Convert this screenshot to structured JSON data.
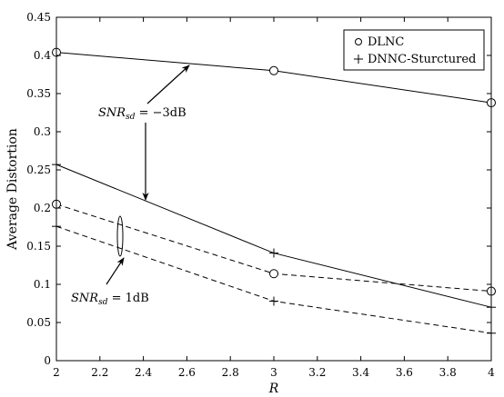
{
  "chart_data": {
    "type": "line",
    "xlabel": "R",
    "ylabel": "Average Distortion",
    "xlim": [
      2,
      4
    ],
    "ylim": [
      0,
      0.45
    ],
    "xticks": [
      "2",
      "2.2",
      "2.4",
      "2.6",
      "2.8",
      "3",
      "3.2",
      "3.4",
      "3.6",
      "3.8",
      "4"
    ],
    "yticks": [
      "0",
      "0.05",
      "0.1",
      "0.15",
      "0.2",
      "0.25",
      "0.3",
      "0.35",
      "0.4",
      "0.45"
    ],
    "grid": false,
    "legend_position": "top-right",
    "legend": [
      {
        "label": "DLNC",
        "marker": "o"
      },
      {
        "label": "DNNC-Sturctured",
        "marker": "+"
      }
    ],
    "series": [
      {
        "group": "SNR -3dB",
        "marker": "o",
        "style": "solid",
        "x": [
          2,
          3,
          4
        ],
        "y": [
          0.404,
          0.38,
          0.338
        ]
      },
      {
        "group": "SNR -3dB",
        "marker": "+",
        "style": "solid",
        "x": [
          2,
          3,
          4
        ],
        "y": [
          0.257,
          0.141,
          0.07
        ]
      },
      {
        "group": "SNR 1dB",
        "marker": "o",
        "style": "dashed",
        "x": [
          2,
          3,
          4
        ],
        "y": [
          0.205,
          0.114,
          0.091
        ]
      },
      {
        "group": "SNR 1dB",
        "marker": "+",
        "style": "dashed",
        "x": [
          2,
          3,
          4
        ],
        "y": [
          0.176,
          0.078,
          0.036
        ]
      }
    ],
    "annotations": [
      {
        "text_main": "SNR",
        "text_sub": "sd",
        "text_rest": " = −3dB"
      },
      {
        "text_main": "SNR",
        "text_sub": "sd",
        "text_rest": " = 1dB"
      }
    ]
  }
}
